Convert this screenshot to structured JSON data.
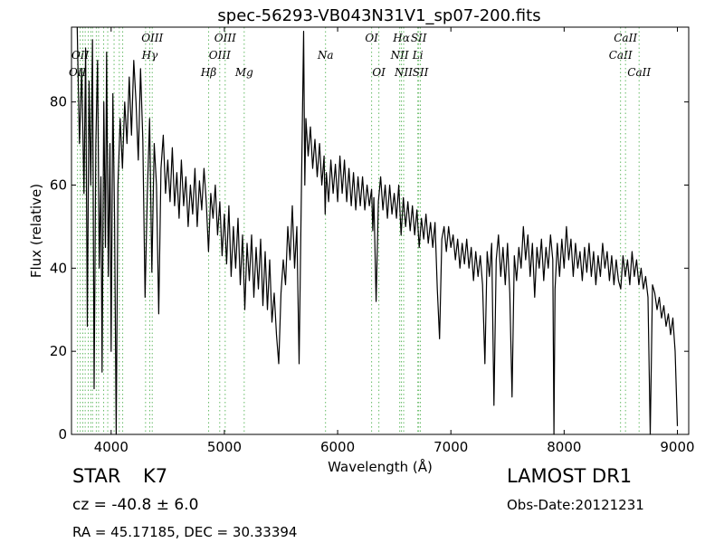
{
  "chart_data": {
    "type": "line",
    "title": "spec-56293-VB043N31V1_sp07-200.fits",
    "xlabel": "Wavelength (Å)",
    "ylabel": "Flux (relative)",
    "xlim": [
      3650,
      9100
    ],
    "ylim": [
      0,
      98
    ],
    "xticks": [
      4000,
      5000,
      6000,
      7000,
      8000,
      9000
    ],
    "yticks": [
      0,
      20,
      40,
      60,
      80
    ],
    "grid": false,
    "series": [
      {
        "color": "#000000",
        "points": [
          [
            3700,
            100
          ],
          [
            3720,
            70
          ],
          [
            3740,
            88
          ],
          [
            3760,
            58
          ],
          [
            3775,
            93
          ],
          [
            3790,
            26
          ],
          [
            3805,
            85
          ],
          [
            3820,
            60
          ],
          [
            3835,
            95
          ],
          [
            3850,
            11
          ],
          [
            3865,
            70
          ],
          [
            3880,
            90
          ],
          [
            3895,
            40
          ],
          [
            3910,
            62
          ],
          [
            3920,
            15
          ],
          [
            3935,
            80
          ],
          [
            3950,
            45
          ],
          [
            3960,
            92
          ],
          [
            3975,
            38
          ],
          [
            3990,
            70
          ],
          [
            4000,
            20
          ],
          [
            4015,
            82
          ],
          [
            4030,
            52
          ],
          [
            4045,
            0
          ],
          [
            4060,
            60
          ],
          [
            4080,
            76
          ],
          [
            4100,
            64
          ],
          [
            4120,
            80
          ],
          [
            4140,
            70
          ],
          [
            4160,
            86
          ],
          [
            4180,
            72
          ],
          [
            4200,
            90
          ],
          [
            4220,
            80
          ],
          [
            4240,
            66
          ],
          [
            4260,
            88
          ],
          [
            4280,
            71
          ],
          [
            4300,
            33
          ],
          [
            4320,
            58
          ],
          [
            4340,
            76
          ],
          [
            4360,
            39
          ],
          [
            4380,
            70
          ],
          [
            4400,
            60
          ],
          [
            4420,
            29
          ],
          [
            4440,
            64
          ],
          [
            4460,
            72
          ],
          [
            4480,
            58
          ],
          [
            4500,
            66
          ],
          [
            4520,
            56
          ],
          [
            4540,
            69
          ],
          [
            4560,
            55
          ],
          [
            4580,
            63
          ],
          [
            4600,
            52
          ],
          [
            4620,
            66
          ],
          [
            4640,
            55
          ],
          [
            4660,
            62
          ],
          [
            4680,
            50
          ],
          [
            4700,
            60
          ],
          [
            4720,
            53
          ],
          [
            4740,
            64
          ],
          [
            4760,
            50
          ],
          [
            4780,
            61
          ],
          [
            4800,
            54
          ],
          [
            4820,
            64
          ],
          [
            4840,
            56
          ],
          [
            4860,
            44
          ],
          [
            4880,
            58
          ],
          [
            4900,
            52
          ],
          [
            4920,
            60
          ],
          [
            4940,
            48
          ],
          [
            4960,
            56
          ],
          [
            4980,
            43
          ],
          [
            5000,
            53
          ],
          [
            5020,
            41
          ],
          [
            5040,
            55
          ],
          [
            5060,
            38
          ],
          [
            5080,
            50
          ],
          [
            5100,
            40
          ],
          [
            5120,
            52
          ],
          [
            5140,
            36
          ],
          [
            5160,
            48
          ],
          [
            5180,
            30
          ],
          [
            5200,
            46
          ],
          [
            5220,
            37
          ],
          [
            5240,
            48
          ],
          [
            5260,
            33
          ],
          [
            5280,
            45
          ],
          [
            5300,
            35
          ],
          [
            5320,
            47
          ],
          [
            5340,
            31
          ],
          [
            5360,
            44
          ],
          [
            5380,
            30
          ],
          [
            5400,
            42
          ],
          [
            5420,
            27
          ],
          [
            5440,
            34
          ],
          [
            5460,
            24
          ],
          [
            5480,
            17
          ],
          [
            5500,
            34
          ],
          [
            5520,
            42
          ],
          [
            5540,
            36
          ],
          [
            5560,
            50
          ],
          [
            5580,
            42
          ],
          [
            5600,
            55
          ],
          [
            5620,
            40
          ],
          [
            5640,
            50
          ],
          [
            5660,
            17
          ],
          [
            5680,
            58
          ],
          [
            5700,
            97
          ],
          [
            5710,
            60
          ],
          [
            5720,
            76
          ],
          [
            5740,
            67
          ],
          [
            5760,
            74
          ],
          [
            5780,
            64
          ],
          [
            5800,
            71
          ],
          [
            5820,
            62
          ],
          [
            5840,
            70
          ],
          [
            5860,
            60
          ],
          [
            5880,
            67
          ],
          [
            5890,
            53
          ],
          [
            5900,
            63
          ],
          [
            5920,
            56
          ],
          [
            5940,
            66
          ],
          [
            5960,
            58
          ],
          [
            5980,
            65
          ],
          [
            6000,
            56
          ],
          [
            6020,
            67
          ],
          [
            6040,
            58
          ],
          [
            6060,
            66
          ],
          [
            6080,
            56
          ],
          [
            6100,
            64
          ],
          [
            6120,
            55
          ],
          [
            6140,
            63
          ],
          [
            6160,
            54
          ],
          [
            6180,
            62
          ],
          [
            6200,
            55
          ],
          [
            6220,
            62
          ],
          [
            6240,
            54
          ],
          [
            6260,
            60
          ],
          [
            6280,
            55
          ],
          [
            6300,
            59
          ],
          [
            6310,
            49
          ],
          [
            6320,
            57
          ],
          [
            6340,
            32
          ],
          [
            6360,
            56
          ],
          [
            6380,
            62
          ],
          [
            6400,
            54
          ],
          [
            6420,
            60
          ],
          [
            6440,
            52
          ],
          [
            6460,
            60
          ],
          [
            6480,
            53
          ],
          [
            6500,
            58
          ],
          [
            6520,
            52
          ],
          [
            6540,
            60
          ],
          [
            6560,
            48
          ],
          [
            6580,
            57
          ],
          [
            6600,
            50
          ],
          [
            6620,
            56
          ],
          [
            6640,
            49
          ],
          [
            6660,
            55
          ],
          [
            6680,
            48
          ],
          [
            6700,
            54
          ],
          [
            6720,
            45
          ],
          [
            6740,
            52
          ],
          [
            6760,
            47
          ],
          [
            6780,
            53
          ],
          [
            6800,
            46
          ],
          [
            6820,
            51
          ],
          [
            6840,
            45
          ],
          [
            6860,
            51
          ],
          [
            6880,
            35
          ],
          [
            6900,
            23
          ],
          [
            6920,
            47
          ],
          [
            6940,
            50
          ],
          [
            6960,
            44
          ],
          [
            6980,
            50
          ],
          [
            7000,
            45
          ],
          [
            7020,
            48
          ],
          [
            7040,
            42
          ],
          [
            7060,
            47
          ],
          [
            7080,
            40
          ],
          [
            7100,
            46
          ],
          [
            7120,
            41
          ],
          [
            7140,
            47
          ],
          [
            7160,
            40
          ],
          [
            7180,
            45
          ],
          [
            7200,
            37
          ],
          [
            7220,
            44
          ],
          [
            7240,
            38
          ],
          [
            7260,
            43
          ],
          [
            7280,
            36
          ],
          [
            7300,
            17
          ],
          [
            7320,
            44
          ],
          [
            7340,
            38
          ],
          [
            7360,
            46
          ],
          [
            7380,
            7
          ],
          [
            7400,
            42
          ],
          [
            7420,
            48
          ],
          [
            7440,
            38
          ],
          [
            7460,
            45
          ],
          [
            7480,
            36
          ],
          [
            7500,
            46
          ],
          [
            7520,
            34
          ],
          [
            7540,
            9
          ],
          [
            7560,
            43
          ],
          [
            7580,
            37
          ],
          [
            7600,
            45
          ],
          [
            7620,
            40
          ],
          [
            7640,
            50
          ],
          [
            7660,
            42
          ],
          [
            7680,
            48
          ],
          [
            7700,
            38
          ],
          [
            7720,
            46
          ],
          [
            7740,
            33
          ],
          [
            7760,
            45
          ],
          [
            7780,
            40
          ],
          [
            7800,
            47
          ],
          [
            7820,
            37
          ],
          [
            7840,
            45
          ],
          [
            7860,
            40
          ],
          [
            7880,
            48
          ],
          [
            7900,
            42
          ],
          [
            7910,
            0
          ],
          [
            7920,
            35
          ],
          [
            7940,
            46
          ],
          [
            7960,
            38
          ],
          [
            7980,
            47
          ],
          [
            8000,
            40
          ],
          [
            8020,
            50
          ],
          [
            8040,
            42
          ],
          [
            8060,
            47
          ],
          [
            8080,
            38
          ],
          [
            8100,
            46
          ],
          [
            8120,
            40
          ],
          [
            8140,
            44
          ],
          [
            8160,
            37
          ],
          [
            8180,
            45
          ],
          [
            8200,
            39
          ],
          [
            8220,
            46
          ],
          [
            8240,
            38
          ],
          [
            8260,
            44
          ],
          [
            8280,
            36
          ],
          [
            8300,
            43
          ],
          [
            8320,
            38
          ],
          [
            8340,
            46
          ],
          [
            8360,
            40
          ],
          [
            8380,
            44
          ],
          [
            8400,
            37
          ],
          [
            8420,
            43
          ],
          [
            8440,
            36
          ],
          [
            8460,
            42
          ],
          [
            8480,
            37
          ],
          [
            8500,
            35
          ],
          [
            8520,
            43
          ],
          [
            8540,
            38
          ],
          [
            8560,
            42
          ],
          [
            8580,
            36
          ],
          [
            8600,
            44
          ],
          [
            8620,
            38
          ],
          [
            8640,
            42
          ],
          [
            8660,
            36
          ],
          [
            8680,
            40
          ],
          [
            8700,
            35
          ],
          [
            8720,
            38
          ],
          [
            8740,
            33
          ],
          [
            8760,
            0
          ],
          [
            8780,
            36
          ],
          [
            8800,
            34
          ],
          [
            8820,
            30
          ],
          [
            8840,
            33
          ],
          [
            8860,
            28
          ],
          [
            8880,
            31
          ],
          [
            8900,
            26
          ],
          [
            8920,
            29
          ],
          [
            8940,
            24
          ],
          [
            8960,
            28
          ],
          [
            8980,
            20
          ],
          [
            9000,
            2
          ]
        ]
      }
    ],
    "line_markers": {
      "color": "#66bb66",
      "lines": [
        {
          "x": 3703,
          "label": "OII",
          "tier": 2
        },
        {
          "x": 3727,
          "label": "OII",
          "tier": 1
        },
        {
          "x": 3750,
          "label": "",
          "tier": 0
        },
        {
          "x": 3771,
          "label": "",
          "tier": 0
        },
        {
          "x": 3798,
          "label": "",
          "tier": 0
        },
        {
          "x": 3820,
          "label": "",
          "tier": 0
        },
        {
          "x": 3836,
          "label": "",
          "tier": 0
        },
        {
          "x": 3869,
          "label": "",
          "tier": 0
        },
        {
          "x": 3889,
          "label": "",
          "tier": 0
        },
        {
          "x": 3934,
          "label": "",
          "tier": 0
        },
        {
          "x": 3970,
          "label": "",
          "tier": 0
        },
        {
          "x": 4026,
          "label": "",
          "tier": 0
        },
        {
          "x": 4072,
          "label": "",
          "tier": 0
        },
        {
          "x": 4102,
          "label": "",
          "tier": 0
        },
        {
          "x": 4304,
          "label": "",
          "tier": 0
        },
        {
          "x": 4341,
          "label": "Hγ",
          "tier": 1
        },
        {
          "x": 4363,
          "label": "OIII",
          "tier": 0
        },
        {
          "x": 4861,
          "label": "Hβ",
          "tier": 2
        },
        {
          "x": 4959,
          "label": "OIII",
          "tier": 1
        },
        {
          "x": 5007,
          "label": "OIII",
          "tier": 0
        },
        {
          "x": 5175,
          "label": "Mg",
          "tier": 2
        },
        {
          "x": 5893,
          "label": "Na",
          "tier": 1
        },
        {
          "x": 6300,
          "label": "OI",
          "tier": 0
        },
        {
          "x": 6364,
          "label": "OI",
          "tier": 2
        },
        {
          "x": 6548,
          "label": "NII",
          "tier": 1
        },
        {
          "x": 6563,
          "label": "Hα",
          "tier": 0
        },
        {
          "x": 6583,
          "label": "NII",
          "tier": 2
        },
        {
          "x": 6708,
          "label": "Li",
          "tier": 1
        },
        {
          "x": 6716,
          "label": "SII",
          "tier": 0
        },
        {
          "x": 6731,
          "label": "SII",
          "tier": 2
        },
        {
          "x": 8498,
          "label": "CaII",
          "tier": 1
        },
        {
          "x": 8542,
          "label": "CaII",
          "tier": 0
        },
        {
          "x": 8662,
          "label": "CaII",
          "tier": 2
        }
      ]
    }
  },
  "info": {
    "object_class": "STAR",
    "subclass": "K7",
    "survey": "LAMOST DR1",
    "cz": "cz = -40.8 ± 6.0",
    "obs_date": "Obs-Date:20121231",
    "coords": "RA = 45.17185, DEC = 30.33394"
  }
}
